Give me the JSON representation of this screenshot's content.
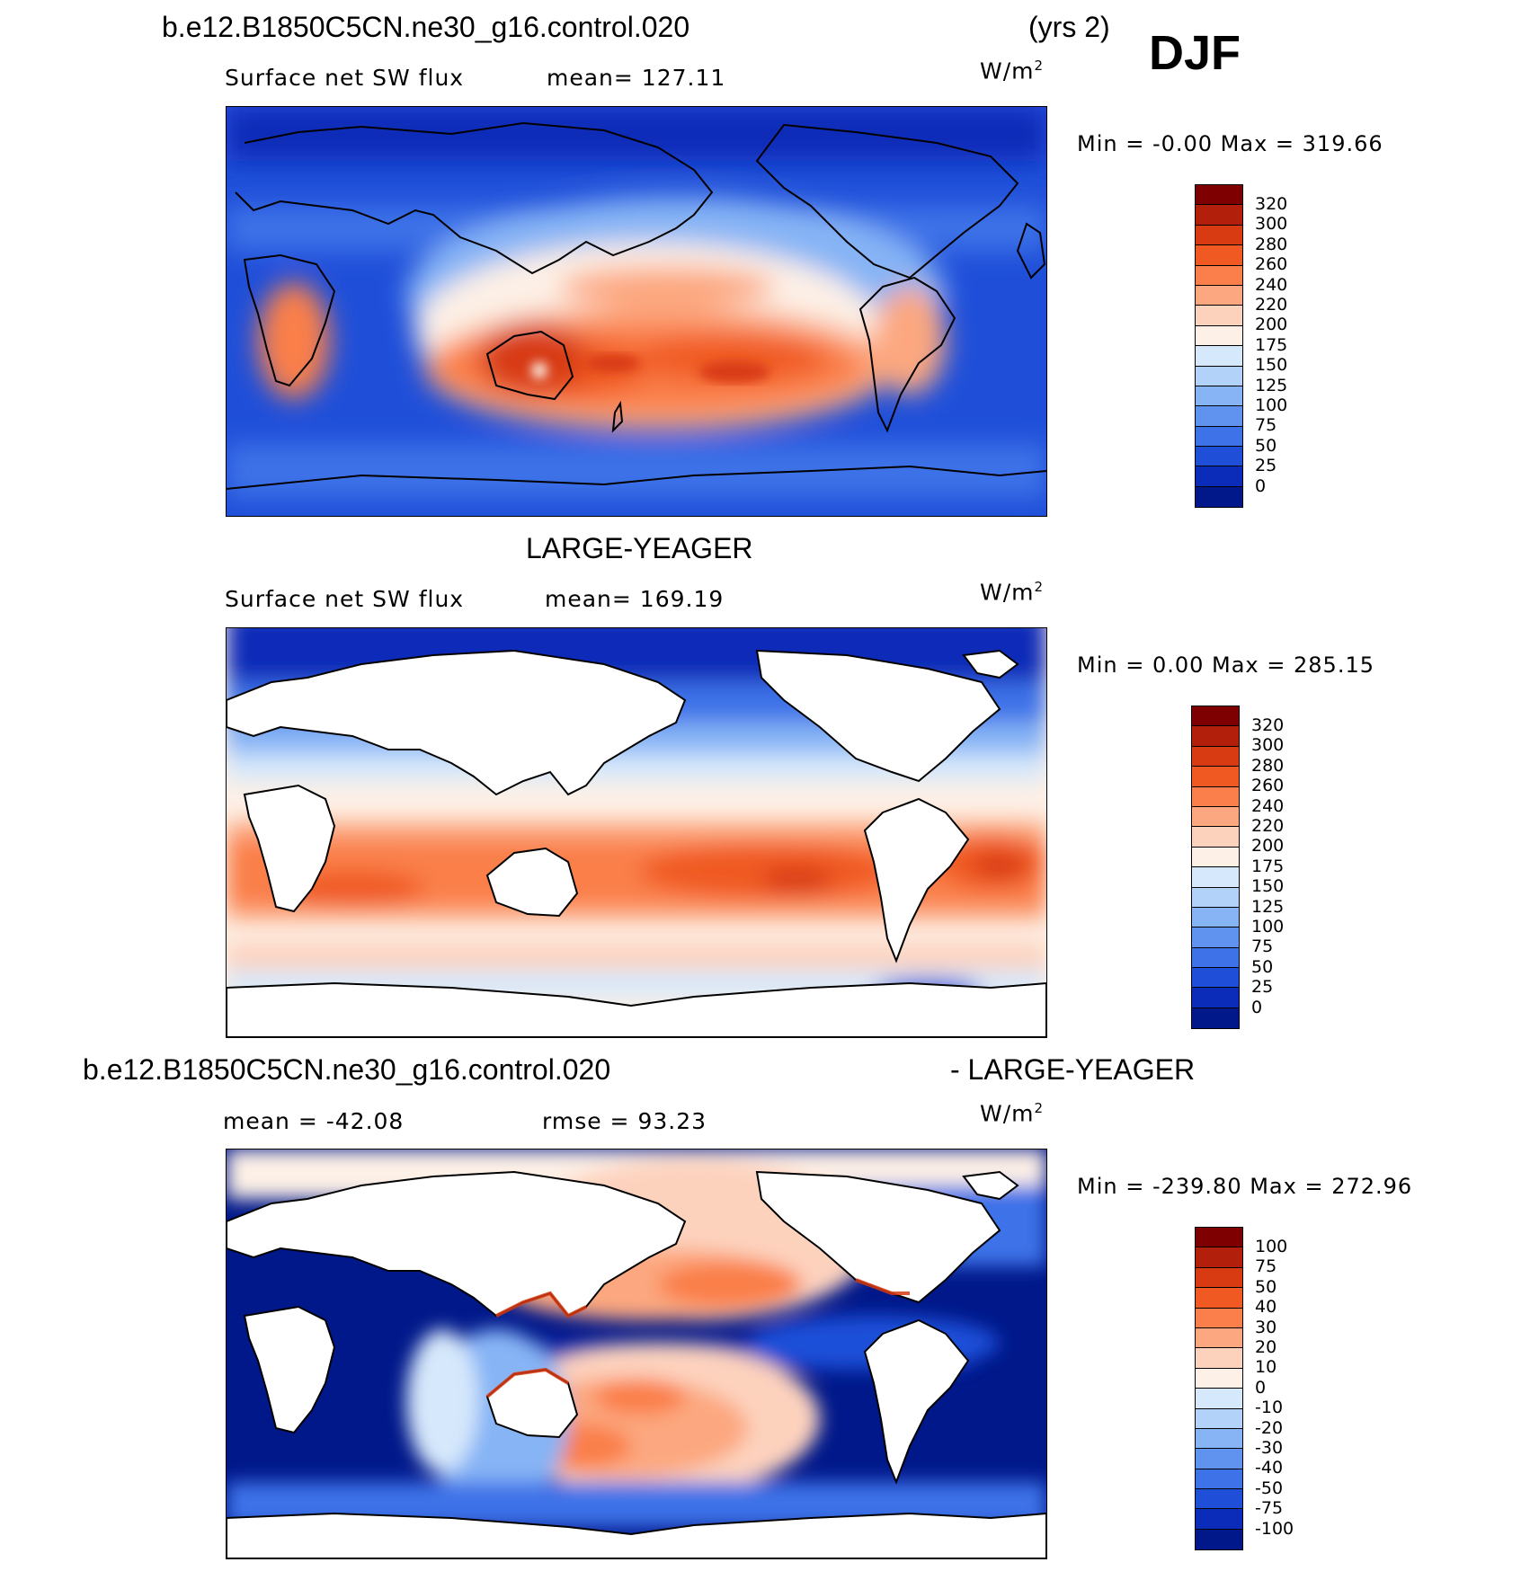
{
  "header": {
    "case_name": "b.e12.B1850C5CN.ne30_g16.control.020",
    "years": "(yrs 2)",
    "season": "DJF"
  },
  "panels": [
    {
      "id": "model",
      "title_left": "Surface net SW flux",
      "title_mid": "mean= 127.11",
      "units": "W/m",
      "units_sup": "2",
      "min_max": "Min =   -0.00 Max = 319.66",
      "colorbar": {
        "labels": [
          "320",
          "300",
          "280",
          "260",
          "240",
          "220",
          "200",
          "175",
          "150",
          "125",
          "100",
          "75",
          "50",
          "25",
          "0"
        ],
        "colors": [
          "#7f0000",
          "#b2200c",
          "#d83a12",
          "#f05a22",
          "#fa7f4a",
          "#fca77f",
          "#fdd2bd",
          "#fdf0e6",
          "#d6e8fb",
          "#b3d2fa",
          "#86b4f5",
          "#5f93ef",
          "#3d72e8",
          "#1f4fd9",
          "#0b2cb8",
          "#00188a"
        ]
      }
    },
    {
      "id": "obs",
      "heading": "LARGE-YEAGER",
      "title_left": "Surface net SW flux",
      "title_mid": "mean= 169.19",
      "units": "W/m",
      "units_sup": "2",
      "min_max": "Min =    0.00 Max = 285.15",
      "colorbar": {
        "labels": [
          "320",
          "300",
          "280",
          "260",
          "240",
          "220",
          "200",
          "175",
          "150",
          "125",
          "100",
          "75",
          "50",
          "25",
          "0"
        ],
        "colors": [
          "#7f0000",
          "#b2200c",
          "#d83a12",
          "#f05a22",
          "#fa7f4a",
          "#fca77f",
          "#fdd2bd",
          "#fdf0e6",
          "#d6e8fb",
          "#b3d2fa",
          "#86b4f5",
          "#5f93ef",
          "#3d72e8",
          "#1f4fd9",
          "#0b2cb8",
          "#00188a"
        ]
      }
    },
    {
      "id": "diff",
      "heading_left": "b.e12.B1850C5CN.ne30_g16.control.020",
      "heading_right": "- LARGE-YEAGER",
      "title_left": "mean = -42.08",
      "title_mid": "rmse =   93.23",
      "units": "W/m",
      "units_sup": "2",
      "min_max": "Min = -239.80 Max = 272.96",
      "colorbar": {
        "labels": [
          "100",
          "75",
          "50",
          "40",
          "30",
          "20",
          "10",
          "0",
          "-10",
          "-20",
          "-30",
          "-40",
          "-50",
          "-75",
          "-100"
        ],
        "colors": [
          "#7f0000",
          "#b2200c",
          "#d83a12",
          "#f05a22",
          "#fa7f4a",
          "#fca77f",
          "#fdd2bd",
          "#fdf0e6",
          "#d6e8fb",
          "#b3d2fa",
          "#86b4f5",
          "#5f93ef",
          "#3d72e8",
          "#1f4fd9",
          "#0b2cb8",
          "#00188a"
        ]
      }
    }
  ]
}
